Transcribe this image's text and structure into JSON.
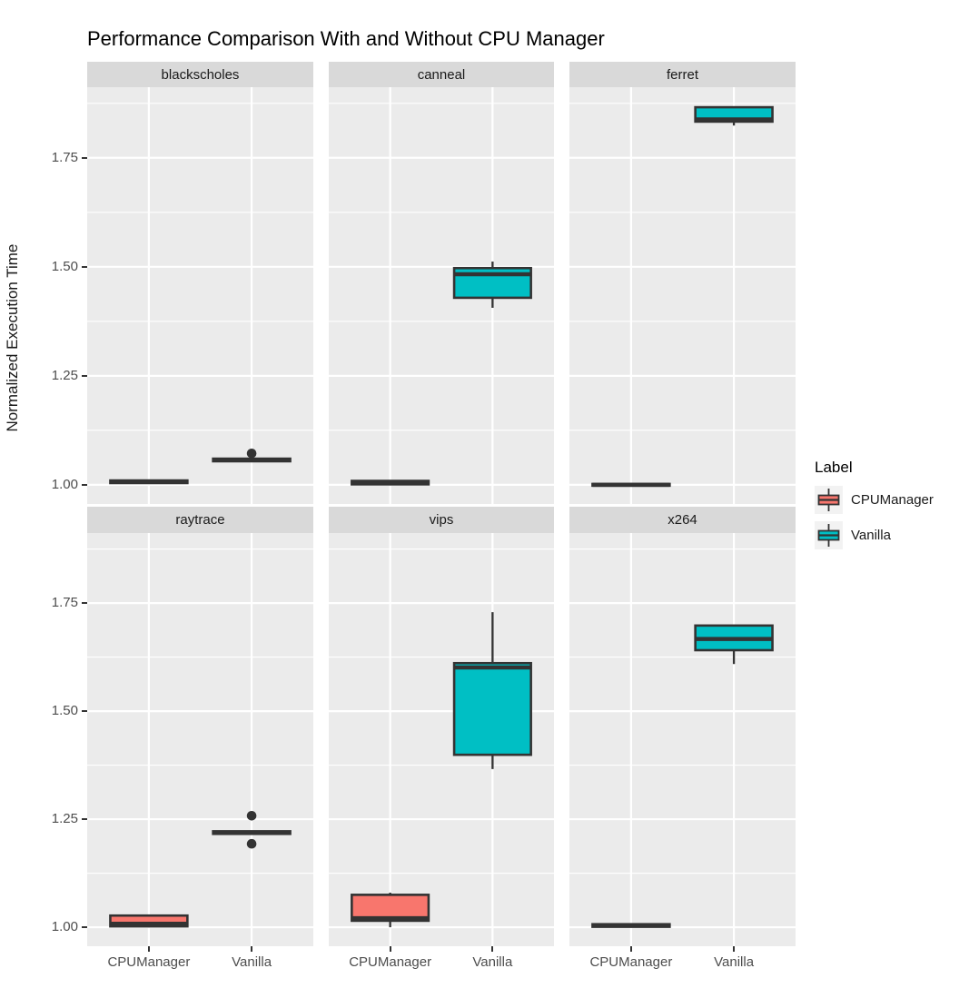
{
  "title": "Performance Comparison With and Without CPU Manager",
  "chart_data": {
    "type": "boxplot",
    "facet_layout": {
      "rows": 2,
      "cols": 3
    },
    "categories": [
      "CPUManager",
      "Vanilla"
    ],
    "y_axis": {
      "title": "Normalized Execution Time",
      "ticks": [
        1.0,
        1.25,
        1.5,
        1.75
      ],
      "tick_labels": [
        "1.00",
        "1.25",
        "1.50",
        "1.75"
      ],
      "minor_ticks": [
        1.125,
        1.375,
        1.625,
        1.875
      ],
      "ylim": [
        0.956,
        1.912
      ],
      "grid": "on"
    },
    "legend": {
      "title": "Label",
      "position": "right",
      "entries": [
        {
          "label": "CPUManager",
          "color": "#F8766D"
        },
        {
          "label": "Vanilla",
          "color": "#00BFC4"
        }
      ]
    },
    "style": {
      "panel_bg": "#EBEBEB",
      "strip_bg": "#D9D9D9",
      "grid_color": "#FFFFFF",
      "box_stroke": "#333333",
      "outlier_color": "#333333"
    },
    "facets": [
      {
        "label": "blackscholes",
        "boxes": [
          {
            "group": "CPUManager",
            "low": 1.003,
            "q1": 1.004,
            "median": 1.007,
            "q3": 1.01,
            "high": 1.011,
            "outliers": []
          },
          {
            "group": "Vanilla",
            "low": 1.053,
            "q1": 1.054,
            "median": 1.057,
            "q3": 1.06,
            "high": 1.061,
            "outliers": [
              1.072
            ]
          }
        ]
      },
      {
        "label": "canneal",
        "boxes": [
          {
            "group": "CPUManager",
            "low": 1.0,
            "q1": 1.001,
            "median": 1.006,
            "q3": 1.009,
            "high": 1.01,
            "outliers": []
          },
          {
            "group": "Vanilla",
            "low": 1.406,
            "q1": 1.429,
            "median": 1.483,
            "q3": 1.497,
            "high": 1.512,
            "outliers": []
          }
        ]
      },
      {
        "label": "ferret",
        "boxes": [
          {
            "group": "CPUManager",
            "low": 0.997,
            "q1": 0.998,
            "median": 1.0,
            "q3": 1.002,
            "high": 1.003,
            "outliers": []
          },
          {
            "group": "Vanilla",
            "low": 1.824,
            "q1": 1.833,
            "median": 1.838,
            "q3": 1.866,
            "high": 1.866,
            "outliers": []
          }
        ]
      },
      {
        "label": "raytrace",
        "boxes": [
          {
            "group": "CPUManager",
            "low": 1.0,
            "q1": 1.002,
            "median": 1.008,
            "q3": 1.027,
            "high": 1.027,
            "outliers": []
          },
          {
            "group": "Vanilla",
            "low": 1.215,
            "q1": 1.216,
            "median": 1.219,
            "q3": 1.222,
            "high": 1.223,
            "outliers": [
              1.258,
              1.193
            ]
          }
        ]
      },
      {
        "label": "vips",
        "boxes": [
          {
            "group": "CPUManager",
            "low": 1.0,
            "q1": 1.015,
            "median": 1.021,
            "q3": 1.075,
            "high": 1.08,
            "outliers": []
          },
          {
            "group": "Vanilla",
            "low": 1.366,
            "q1": 1.399,
            "median": 1.601,
            "q3": 1.611,
            "high": 1.729,
            "outliers": []
          }
        ]
      },
      {
        "label": "x264",
        "boxes": [
          {
            "group": "CPUManager",
            "low": 1.0,
            "q1": 1.001,
            "median": 1.004,
            "q3": 1.007,
            "high": 1.008,
            "outliers": []
          },
          {
            "group": "Vanilla",
            "low": 1.609,
            "q1": 1.641,
            "median": 1.667,
            "q3": 1.698,
            "high": 1.699,
            "outliers": []
          }
        ]
      }
    ]
  }
}
